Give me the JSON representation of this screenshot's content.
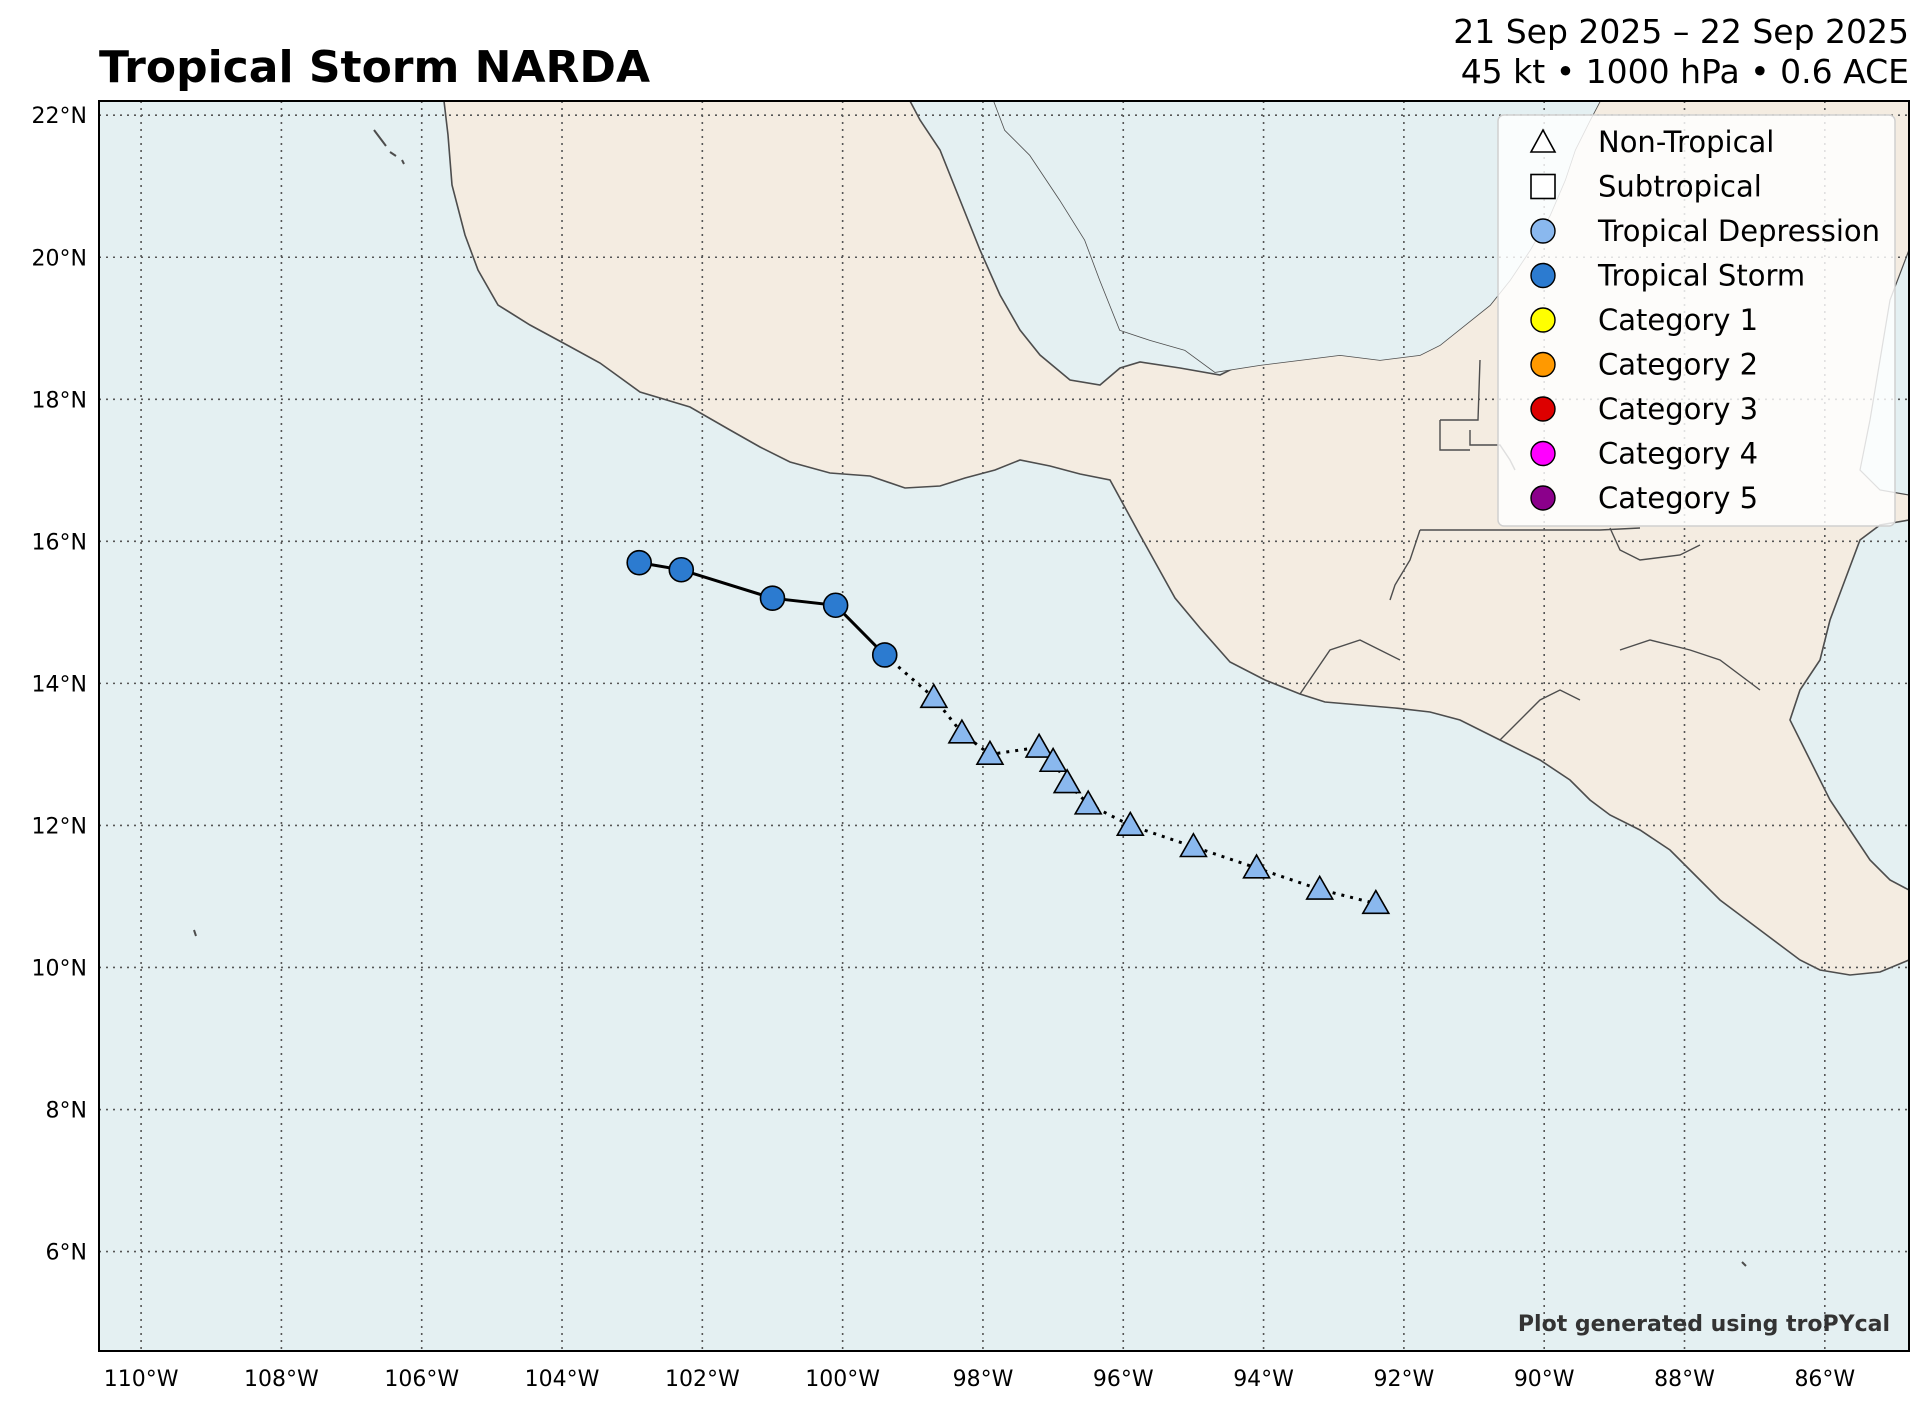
{
  "title": "Tropical Storm NARDA",
  "date_range": "21 Sep 2025 – 22 Sep 2025",
  "stats": "45 kt • 1000 hPa • 0.6 ACE",
  "credit": "Plot generated using troPYcal",
  "colors": {
    "ocean": "#e4f0f2",
    "land": "#f4ece1",
    "coast": "#4d4d4d",
    "tropical_depression": "#8ab8ee",
    "tropical_storm": "#2c7bd0",
    "category_1": "#ffff00",
    "category_2": "#ff9900",
    "category_3": "#dd0000",
    "category_4": "#ff00ff",
    "category_5": "#8b008b"
  },
  "map": {
    "lon_range": [
      -110.6,
      -84.8
    ],
    "lat_range": [
      4.6,
      22.2
    ],
    "lon_ticks": [
      "110°W",
      "108°W",
      "106°W",
      "104°W",
      "102°W",
      "100°W",
      "98°W",
      "96°W",
      "94°W",
      "92°W",
      "90°W",
      "88°W",
      "86°W"
    ],
    "lat_ticks": [
      "22°N",
      "20°N",
      "18°N",
      "16°N",
      "14°N",
      "12°N",
      "10°N",
      "8°N",
      "6°N"
    ],
    "gridlines": "dotted"
  },
  "legend": {
    "placement": "top-right",
    "items": [
      {
        "label": "Non-Tropical",
        "marker": "triangle-open",
        "color": "#ffffff"
      },
      {
        "label": "Subtropical",
        "marker": "square-open",
        "color": "#ffffff"
      },
      {
        "label": "Tropical Depression",
        "marker": "circle",
        "color": "#8ab8ee"
      },
      {
        "label": "Tropical Storm",
        "marker": "circle",
        "color": "#2c7bd0"
      },
      {
        "label": "Category 1",
        "marker": "circle",
        "color": "#ffff00"
      },
      {
        "label": "Category 2",
        "marker": "circle",
        "color": "#ff9900"
      },
      {
        "label": "Category 3",
        "marker": "circle",
        "color": "#dd0000"
      },
      {
        "label": "Category 4",
        "marker": "circle",
        "color": "#ff00ff"
      },
      {
        "label": "Category 5",
        "marker": "circle",
        "color": "#8b008b"
      }
    ]
  },
  "chart_data": {
    "type": "scatter",
    "track": [
      {
        "lon": -102.9,
        "lat": 15.7,
        "class": "tropical_storm"
      },
      {
        "lon": -102.3,
        "lat": 15.6,
        "class": "tropical_storm"
      },
      {
        "lon": -101.0,
        "lat": 15.2,
        "class": "tropical_storm"
      },
      {
        "lon": -100.1,
        "lat": 15.1,
        "class": "tropical_storm"
      },
      {
        "lon": -99.4,
        "lat": 14.4,
        "class": "tropical_storm"
      },
      {
        "lon": -98.7,
        "lat": 13.8,
        "class": "non_tropical"
      },
      {
        "lon": -98.3,
        "lat": 13.3,
        "class": "non_tropical"
      },
      {
        "lon": -97.9,
        "lat": 13.0,
        "class": "non_tropical"
      },
      {
        "lon": -97.2,
        "lat": 13.1,
        "class": "non_tropical"
      },
      {
        "lon": -97.0,
        "lat": 12.9,
        "class": "non_tropical"
      },
      {
        "lon": -96.8,
        "lat": 12.6,
        "class": "non_tropical"
      },
      {
        "lon": -96.5,
        "lat": 12.3,
        "class": "non_tropical"
      },
      {
        "lon": -95.9,
        "lat": 12.0,
        "class": "non_tropical"
      },
      {
        "lon": -95.0,
        "lat": 11.7,
        "class": "non_tropical"
      },
      {
        "lon": -94.1,
        "lat": 11.4,
        "class": "non_tropical"
      },
      {
        "lon": -93.2,
        "lat": 11.1,
        "class": "non_tropical"
      },
      {
        "lon": -92.4,
        "lat": 10.9,
        "class": "non_tropical"
      }
    ]
  }
}
